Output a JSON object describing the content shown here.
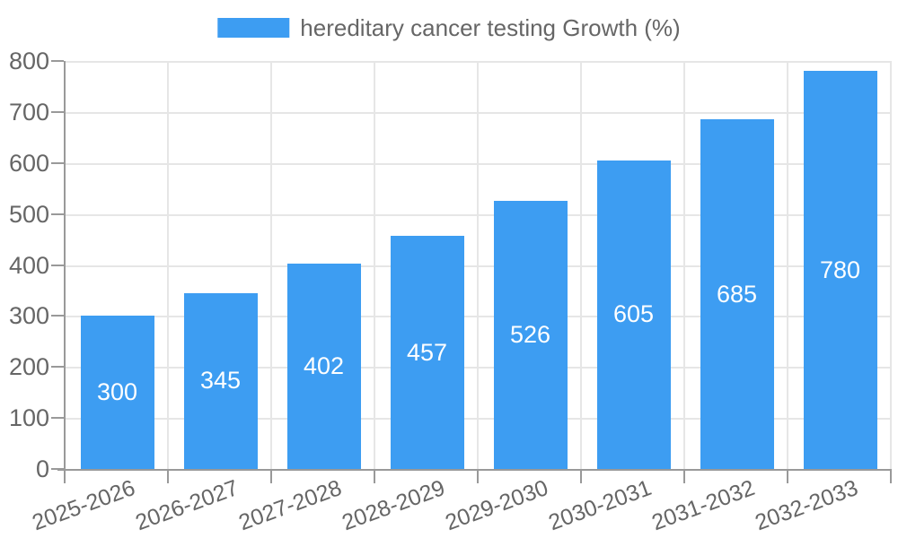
{
  "legend": {
    "label": "hereditary cancer testing Growth (%)"
  },
  "chart_data": {
    "type": "bar",
    "title": "",
    "categories": [
      "2025-2026",
      "2026-2027",
      "2027-2028",
      "2028-2029",
      "2029-2030",
      "2030-2031",
      "2031-2032",
      "2032-2033"
    ],
    "series": [
      {
        "name": "hereditary cancer testing Growth (%)",
        "values": [
          300,
          345,
          402,
          457,
          526,
          605,
          685,
          780
        ]
      }
    ],
    "values": [
      300,
      345,
      402,
      457,
      526,
      605,
      685,
      780
    ],
    "bar_value_labels": [
      "300",
      "345",
      "402",
      "457",
      "526",
      "605",
      "685",
      "780"
    ],
    "xlabel": "",
    "ylabel": "",
    "ylim": [
      0,
      800
    ],
    "yticks": [
      0,
      100,
      200,
      300,
      400,
      500,
      600,
      700,
      800
    ],
    "grid": true,
    "legend_position": "top"
  },
  "colors": {
    "bar": "#3D9DF2",
    "bar_value_label": "#FFFFFF",
    "axis_line": "#999999",
    "tick_mark": "#999999",
    "gridline": "#E6E6E6",
    "tick_text": "#666666",
    "legend_text": "#666666",
    "background": "#FFFFFF"
  }
}
